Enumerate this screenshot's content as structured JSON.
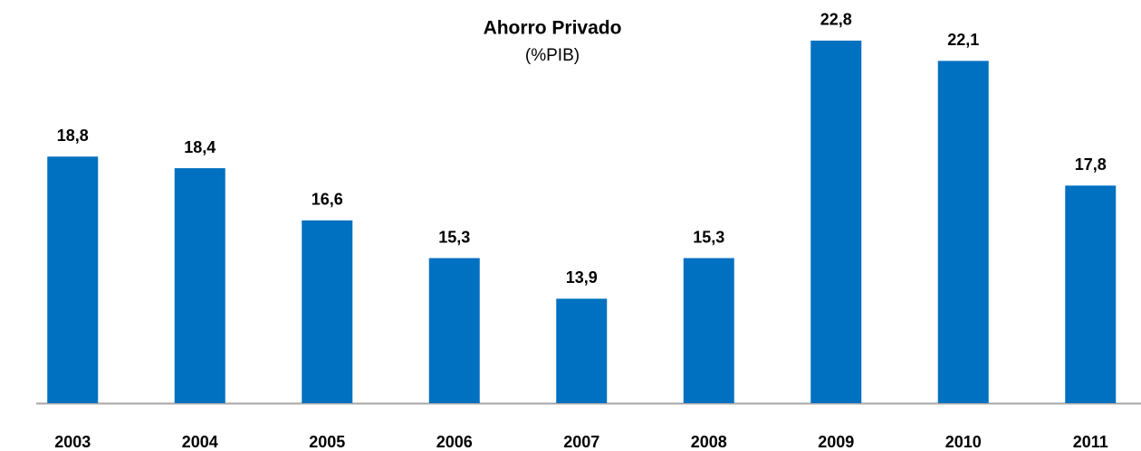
{
  "chart_data": {
    "type": "bar",
    "title": "Ahorro Privado",
    "subtitle": "(%PIB)",
    "categories": [
      "2003",
      "2004",
      "2005",
      "2006",
      "2007",
      "2008",
      "2009",
      "2010",
      "2011"
    ],
    "values": [
      18.8,
      18.4,
      16.6,
      15.3,
      13.9,
      15.3,
      22.8,
      22.1,
      17.8
    ],
    "value_labels": [
      "18,8",
      "18,4",
      "16,6",
      "15,3",
      "13,9",
      "15,3",
      "22,8",
      "22,1",
      "17,8"
    ],
    "color": "#0070c0",
    "ylim": [
      10.3,
      24.2
    ]
  }
}
